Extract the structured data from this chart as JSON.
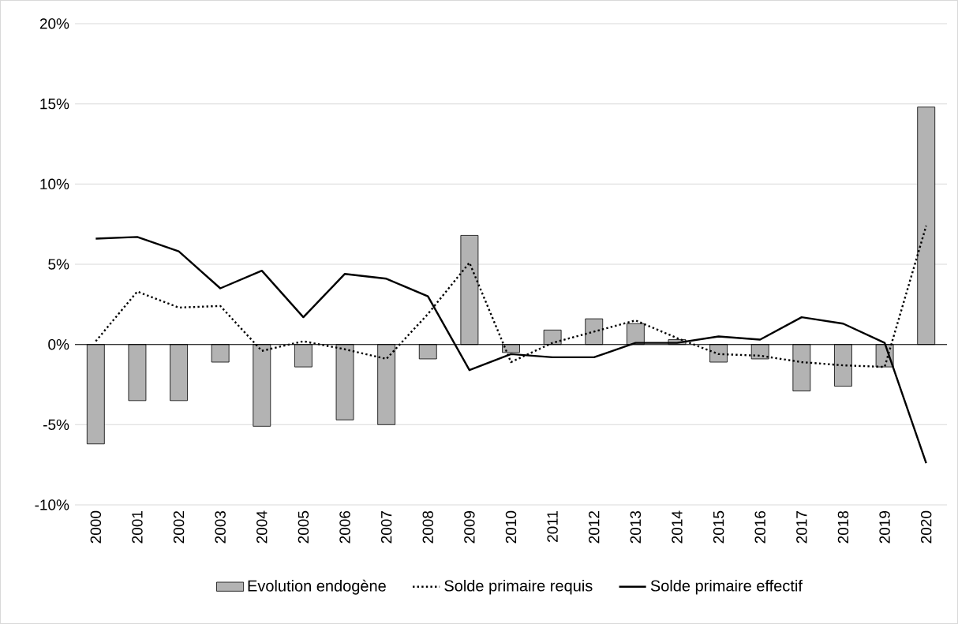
{
  "chart_data": {
    "type": "bar",
    "categories": [
      "2000",
      "2001",
      "2002",
      "2003",
      "2004",
      "2005",
      "2006",
      "2007",
      "2008",
      "2009",
      "2010",
      "2011",
      "2012",
      "2013",
      "2014",
      "2015",
      "2016",
      "2017",
      "2018",
      "2019",
      "2020"
    ],
    "series": [
      {
        "name": "Evolution endogène",
        "color": "#b3b3b3",
        "values": [
          -6.2,
          -3.5,
          -3.5,
          -1.1,
          -5.1,
          -1.4,
          -4.7,
          -5.0,
          -0.9,
          6.8,
          -0.5,
          0.9,
          1.6,
          1.3,
          0.3,
          -1.1,
          -0.9,
          -2.9,
          -2.6,
          -1.4,
          14.8
        ]
      },
      {
        "name": "Solde primaire requis",
        "type": "line",
        "color": "#000000",
        "line_style": "dotted",
        "values": [
          0.2,
          3.3,
          2.3,
          2.4,
          -0.4,
          0.2,
          -0.3,
          -0.9,
          1.9,
          5.1,
          -1.1,
          0.1,
          0.8,
          1.5,
          0.4,
          -0.6,
          -0.7,
          -1.1,
          -1.3,
          -1.4,
          7.4
        ]
      },
      {
        "name": "Solde primaire effectif",
        "type": "line",
        "color": "#000000",
        "line_style": "solid",
        "values": [
          6.6,
          6.7,
          5.8,
          3.5,
          4.6,
          1.7,
          4.4,
          4.1,
          3.0,
          -1.6,
          -0.6,
          -0.8,
          -0.8,
          0.1,
          0.1,
          0.5,
          0.3,
          1.7,
          1.3,
          0.1,
          -7.4
        ]
      }
    ],
    "ylim": [
      -10,
      20
    ],
    "yticks": [
      {
        "value": -10,
        "label": "-10%"
      },
      {
        "value": -5,
        "label": "-5%"
      },
      {
        "value": 0,
        "label": "0%"
      },
      {
        "value": 5,
        "label": "5%"
      },
      {
        "value": 10,
        "label": "10%"
      },
      {
        "value": 15,
        "label": "15%"
      },
      {
        "value": 20,
        "label": "20%"
      }
    ],
    "grid": "y",
    "legend": "bottom",
    "marker": "none"
  }
}
